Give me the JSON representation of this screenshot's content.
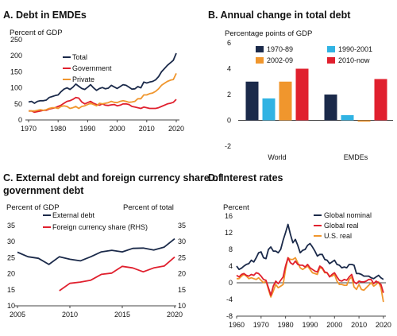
{
  "figure": {
    "panels": [
      {
        "id": "A",
        "title": "A. Debt in EMDEs",
        "unit": "Percent of GDP"
      },
      {
        "id": "B",
        "title": "B. Annual change in total debt",
        "unit": "Percentage points of GDP"
      },
      {
        "id": "C",
        "title_line1": "C. External debt and foreign currency share of",
        "title_line2": "government debt",
        "unit_left": "Percent of GDP",
        "unit_right": "Percent of total"
      },
      {
        "id": "D",
        "title": "D. Interest rates",
        "unit": "Percent"
      }
    ]
  },
  "colors": {
    "navy": "#1b2a4a",
    "red": "#e0202e",
    "orange": "#f0962d",
    "cyan": "#31b3e3",
    "axis": "#444444"
  },
  "chart_data": [
    {
      "panel": "A",
      "type": "line",
      "title": "A. Debt in EMDEs",
      "ylabel": "Percent of GDP",
      "xlim": [
        1970,
        2020
      ],
      "ylim": [
        0,
        250
      ],
      "xticks": [
        1970,
        1980,
        1990,
        2000,
        2010,
        2020
      ],
      "yticks": [
        0,
        50,
        100,
        150,
        200,
        250
      ],
      "legend": "top-left",
      "series": [
        {
          "name": "Total",
          "color": "navy",
          "x": [
            1970,
            1971,
            1972,
            1973,
            1974,
            1975,
            1976,
            1977,
            1978,
            1979,
            1980,
            1981,
            1982,
            1983,
            1984,
            1985,
            1986,
            1987,
            1988,
            1989,
            1990,
            1991,
            1992,
            1993,
            1994,
            1995,
            1996,
            1997,
            1998,
            1999,
            2000,
            2001,
            2002,
            2003,
            2004,
            2005,
            2006,
            2007,
            2008,
            2009,
            2010,
            2011,
            2012,
            2013,
            2014,
            2015,
            2016,
            2017,
            2018,
            2019,
            2020
          ],
          "values": [
            56,
            58,
            52,
            58,
            60,
            60,
            62,
            70,
            73,
            76,
            78,
            88,
            96,
            100,
            95,
            102,
            112,
            105,
            98,
            95,
            102,
            110,
            100,
            92,
            98,
            101,
            97,
            99,
            108,
            103,
            98,
            104,
            110,
            108,
            102,
            96,
            97,
            104,
            100,
            118,
            115,
            118,
            120,
            125,
            135,
            150,
            160,
            170,
            178,
            186,
            208
          ]
        },
        {
          "name": "Government",
          "color": "red",
          "x": [
            1970,
            1971,
            1972,
            1973,
            1974,
            1975,
            1976,
            1977,
            1978,
            1979,
            1980,
            1981,
            1982,
            1983,
            1984,
            1985,
            1986,
            1987,
            1988,
            1989,
            1990,
            1991,
            1992,
            1993,
            1994,
            1995,
            1996,
            1997,
            1998,
            1999,
            2000,
            2001,
            2002,
            2003,
            2004,
            2005,
            2006,
            2007,
            2008,
            2009,
            2010,
            2011,
            2012,
            2013,
            2014,
            2015,
            2016,
            2017,
            2018,
            2019,
            2020
          ],
          "values": [
            28,
            28,
            24,
            26,
            28,
            30,
            30,
            34,
            36,
            38,
            42,
            46,
            52,
            58,
            60,
            64,
            70,
            68,
            56,
            50,
            54,
            58,
            52,
            48,
            46,
            50,
            46,
            45,
            47,
            48,
            44,
            46,
            50,
            50,
            48,
            42,
            40,
            38,
            36,
            40,
            38,
            36,
            36,
            36,
            38,
            42,
            46,
            50,
            52,
            55,
            64
          ]
        },
        {
          "name": "Private",
          "color": "orange",
          "x": [
            1970,
            1971,
            1972,
            1973,
            1974,
            1975,
            1976,
            1977,
            1978,
            1979,
            1980,
            1981,
            1982,
            1983,
            1984,
            1985,
            1986,
            1987,
            1988,
            1989,
            1990,
            1991,
            1992,
            1993,
            1994,
            1995,
            1996,
            1997,
            1998,
            1999,
            2000,
            2001,
            2002,
            2003,
            2004,
            2005,
            2006,
            2007,
            2008,
            2009,
            2010,
            2011,
            2012,
            2013,
            2014,
            2015,
            2016,
            2017,
            2018,
            2019,
            2020
          ],
          "values": [
            28,
            28,
            28,
            30,
            32,
            30,
            32,
            36,
            38,
            38,
            36,
            42,
            44,
            42,
            36,
            38,
            42,
            36,
            42,
            44,
            48,
            52,
            48,
            44,
            52,
            50,
            52,
            54,
            58,
            55,
            54,
            58,
            60,
            58,
            55,
            56,
            58,
            66,
            66,
            78,
            78,
            82,
            84,
            89,
            97,
            108,
            114,
            120,
            124,
            126,
            145
          ]
        }
      ]
    },
    {
      "panel": "B",
      "type": "bar",
      "title": "B. Annual change in total debt",
      "ylabel": "Percentage points of GDP",
      "ylim": [
        -2,
        6
      ],
      "yticks": [
        -2,
        0,
        2,
        4,
        6
      ],
      "categories": [
        "World",
        "EMDEs"
      ],
      "legend": "top",
      "series": [
        {
          "name": "1970-89",
          "color": "navy",
          "values": [
            3.0,
            2.0
          ]
        },
        {
          "name": "1990-2001",
          "color": "cyan",
          "values": [
            1.7,
            0.4
          ]
        },
        {
          "name": "2002-09",
          "color": "orange",
          "values": [
            3.0,
            -0.1
          ]
        },
        {
          "name": "2010-now",
          "color": "red",
          "values": [
            4.0,
            3.2
          ]
        }
      ]
    },
    {
      "panel": "C",
      "type": "line",
      "title": "C. External debt and foreign currency share of government debt",
      "ylabel": "Percent of GDP",
      "ylabel_right": "Percent of total",
      "xlim": [
        2005,
        2020
      ],
      "ylim": [
        10,
        35
      ],
      "xticks": [
        2005,
        2010,
        2015,
        2020
      ],
      "yticks": [
        10,
        15,
        20,
        25,
        30,
        35
      ],
      "legend": "top-left",
      "series": [
        {
          "name": "External debt",
          "color": "navy",
          "axis": "left",
          "x": [
            2005,
            2006,
            2007,
            2008,
            2009,
            2010,
            2011,
            2012,
            2013,
            2014,
            2015,
            2016,
            2017,
            2018,
            2019,
            2020
          ],
          "values": [
            26.7,
            25.3,
            24.8,
            22.9,
            25.3,
            24.5,
            24.0,
            25.3,
            26.8,
            27.3,
            26.8,
            27.9,
            28.0,
            27.4,
            28.3,
            30.9
          ]
        },
        {
          "name": "Foreign currency share (RHS)",
          "color": "red",
          "axis": "right",
          "x": [
            2009,
            2010,
            2011,
            2012,
            2013,
            2014,
            2015,
            2016,
            2017,
            2018,
            2019,
            2020
          ],
          "values": [
            14.7,
            17.0,
            17.4,
            18.0,
            19.8,
            20.2,
            22.3,
            21.8,
            20.6,
            21.8,
            22.4,
            25.2
          ]
        }
      ]
    },
    {
      "panel": "D",
      "type": "line",
      "title": "D. Interest rates",
      "ylabel": "Percent",
      "xlim": [
        1960,
        2021
      ],
      "ylim": [
        -8,
        16
      ],
      "xticks": [
        1960,
        1970,
        1980,
        1990,
        2000,
        2010,
        2020
      ],
      "yticks": [
        -8,
        -4,
        0,
        4,
        8,
        12,
        16
      ],
      "legend": "top-right",
      "series": [
        {
          "name": "Global nominal",
          "color": "navy",
          "x": [
            1960,
            1961,
            1962,
            1963,
            1964,
            1965,
            1966,
            1967,
            1968,
            1969,
            1970,
            1971,
            1972,
            1973,
            1974,
            1975,
            1976,
            1977,
            1978,
            1979,
            1980,
            1981,
            1982,
            1983,
            1984,
            1985,
            1986,
            1987,
            1988,
            1989,
            1990,
            1991,
            1992,
            1993,
            1994,
            1995,
            1996,
            1997,
            1998,
            1999,
            2000,
            2001,
            2002,
            2003,
            2004,
            2005,
            2006,
            2007,
            2008,
            2009,
            2010,
            2011,
            2012,
            2013,
            2014,
            2015,
            2016,
            2017,
            2018,
            2019,
            2020
          ],
          "values": [
            4,
            3.2,
            3.5,
            4,
            4.4,
            4.6,
            5.4,
            5,
            6,
            7.2,
            7.4,
            6,
            5.8,
            8,
            8.6,
            7.6,
            7.6,
            7.2,
            8,
            10.2,
            12,
            14,
            11.6,
            9.6,
            10.4,
            9,
            7.2,
            7.8,
            8,
            9,
            9.4,
            8.6,
            7.6,
            6.4,
            6.8,
            6.8,
            5.6,
            5.4,
            4.6,
            5,
            5.4,
            4.4,
            4.2,
            3.6,
            3.8,
            3.6,
            4.4,
            4.4,
            4.2,
            2.2,
            2.2,
            2,
            1.6,
            1.6,
            1.6,
            1.2,
            1,
            1.4,
            1.8,
            1.2,
            0.8
          ]
        },
        {
          "name": "Global real",
          "color": "red",
          "x": [
            1960,
            1961,
            1962,
            1963,
            1964,
            1965,
            1966,
            1967,
            1968,
            1969,
            1970,
            1971,
            1972,
            1973,
            1974,
            1975,
            1976,
            1977,
            1978,
            1979,
            1980,
            1981,
            1982,
            1983,
            1984,
            1985,
            1986,
            1987,
            1988,
            1989,
            1990,
            1991,
            1992,
            1993,
            1994,
            1995,
            1996,
            1997,
            1998,
            1999,
            2000,
            2001,
            2002,
            2003,
            2004,
            2005,
            2006,
            2007,
            2008,
            2009,
            2010,
            2011,
            2012,
            2013,
            2014,
            2015,
            2016,
            2017,
            2018,
            2019,
            2020
          ],
          "values": [
            1.8,
            1.4,
            2,
            2.2,
            1.8,
            1.6,
            2,
            1.8,
            2.4,
            2.2,
            1.6,
            0.8,
            0.6,
            -1.2,
            -3,
            -0.8,
            0.4,
            -0.2,
            0.6,
            1.4,
            4,
            6,
            4.8,
            4.4,
            5.2,
            4.4,
            4.2,
            4.2,
            3.8,
            4.4,
            3.6,
            3.2,
            2.8,
            2.6,
            4,
            3.6,
            2.6,
            2.4,
            1.4,
            2,
            2.4,
            1.4,
            0.6,
            0.4,
            0.8,
            0.6,
            1.4,
            2,
            0.2,
            -0.2,
            0.4,
            0.2,
            0.2,
            0.4,
            0.8,
            0.8,
            -0.2,
            0.4,
            0,
            -0.4,
            -2.4
          ]
        },
        {
          "name": "U.S. real",
          "color": "orange",
          "x": [
            1960,
            1961,
            1962,
            1963,
            1964,
            1965,
            1966,
            1967,
            1968,
            1969,
            1970,
            1971,
            1972,
            1973,
            1974,
            1975,
            1976,
            1977,
            1978,
            1979,
            1980,
            1981,
            1982,
            1983,
            1984,
            1985,
            1986,
            1987,
            1988,
            1989,
            1990,
            1991,
            1992,
            1993,
            1994,
            1995,
            1996,
            1997,
            1998,
            1999,
            2000,
            2001,
            2002,
            2003,
            2004,
            2005,
            2006,
            2007,
            2008,
            2009,
            2010,
            2011,
            2012,
            2013,
            2014,
            2015,
            2016,
            2017,
            2018,
            2019,
            2020
          ],
          "values": [
            1,
            1,
            1.6,
            2,
            1.6,
            1,
            1.2,
            1,
            0.8,
            1.2,
            0.6,
            0,
            0.4,
            -1.6,
            -3.4,
            -2,
            -0.4,
            -1.2,
            -0.8,
            -0.4,
            3.2,
            6,
            5.6,
            5.6,
            6,
            4.8,
            3.6,
            3.2,
            3.6,
            4,
            3.2,
            2.4,
            2.2,
            2,
            3.6,
            3.4,
            2.4,
            2.4,
            1.6,
            1.6,
            2,
            0.4,
            -0.4,
            -0.4,
            -0.6,
            -0.6,
            0.8,
            1.4,
            -1,
            -1.6,
            -0.4,
            -1.6,
            -1.8,
            -1.2,
            -0.6,
            0,
            -0.8,
            -0.4,
            0.2,
            -1.2,
            -4.6
          ]
        }
      ]
    }
  ]
}
